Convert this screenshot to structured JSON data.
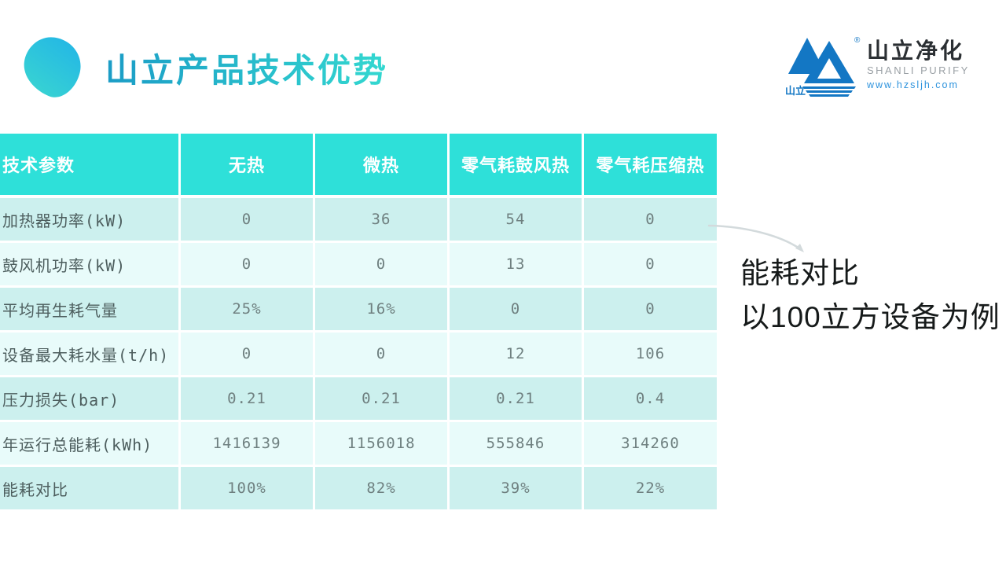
{
  "title": "山立产品技术优势",
  "logo": {
    "mark_text": "山立",
    "registered": "®",
    "brand_cn": "山立净化",
    "brand_en": "SHANLI PURIFY",
    "website": "www.hzsljh.com"
  },
  "annotation": {
    "line1": "能耗对比",
    "line2": "以100立方设备为例"
  },
  "chart_data": {
    "type": "table",
    "title": "山立产品技术优势",
    "headers": [
      "技术参数",
      "无热",
      "微热",
      "零气耗鼓风热",
      "零气耗压缩热"
    ],
    "rows": [
      {
        "label": "加热器功率(kW)",
        "values": [
          "0",
          "36",
          "54",
          "0"
        ]
      },
      {
        "label": "鼓风机功率(kW)",
        "values": [
          "0",
          "0",
          "13",
          "0"
        ]
      },
      {
        "label": "平均再生耗气量",
        "values": [
          "25%",
          "16%",
          "0",
          "0"
        ]
      },
      {
        "label": "设备最大耗水量(t/h)",
        "values": [
          "0",
          "0",
          "12",
          "106"
        ]
      },
      {
        "label": "压力损失(bar)",
        "values": [
          "0.21",
          "0.21",
          "0.21",
          "0.4"
        ]
      },
      {
        "label": "年运行总能耗(kWh)",
        "values": [
          "1416139",
          "1156018",
          "555846",
          "314260"
        ]
      },
      {
        "label": "能耗对比",
        "values": [
          "100%",
          "82%",
          "39%",
          "22%"
        ]
      }
    ]
  },
  "colors": {
    "header_teal": "#2ee0d9",
    "row_odd": "#ccf0ee",
    "row_even": "#e8fbfa",
    "title_gradient_start": "#1b9cc6",
    "title_gradient_end": "#33d8d0",
    "logo_blue": "#1377c4",
    "annotation_text": "#161a1a"
  }
}
